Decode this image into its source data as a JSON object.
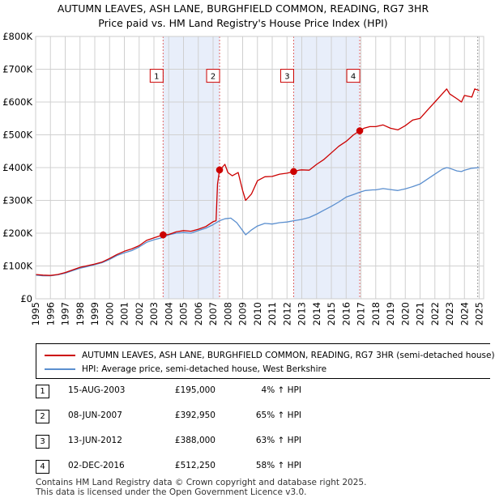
{
  "chart_data": {
    "type": "line",
    "title": "AUTUMN LEAVES, ASH LANE, BURGHFIELD COMMON, READING, RG7 3HR",
    "subtitle": "Price paid vs. HM Land Registry's House Price Index (HPI)",
    "xlim": [
      1995,
      2025.3
    ],
    "ylim": [
      0,
      800000
    ],
    "x_ticks": [
      1995,
      1996,
      1997,
      1998,
      1999,
      2000,
      2001,
      2002,
      2003,
      2004,
      2005,
      2006,
      2007,
      2008,
      2009,
      2010,
      2011,
      2012,
      2013,
      2014,
      2015,
      2016,
      2017,
      2018,
      2019,
      2020,
      2021,
      2022,
      2023,
      2024,
      2025
    ],
    "y_ticks": [
      {
        "value": 0,
        "label": "£0"
      },
      {
        "value": 100000,
        "label": "£100K"
      },
      {
        "value": 200000,
        "label": "£200K"
      },
      {
        "value": 300000,
        "label": "£300K"
      },
      {
        "value": 400000,
        "label": "£400K"
      },
      {
        "value": 500000,
        "label": "£500K"
      },
      {
        "value": 600000,
        "label": "£600K"
      },
      {
        "value": 700000,
        "label": "£700K"
      },
      {
        "value": 800000,
        "label": "£800K"
      }
    ],
    "grid": true,
    "series": [
      {
        "name": "AUTUMN LEAVES, ASH LANE, BURGHFIELD COMMON, READING, RG7 3HR (semi-detached house)",
        "color": "#cc0000",
        "points": [
          [
            1995,
            74000
          ],
          [
            1995.5,
            72000
          ],
          [
            1996,
            71000
          ],
          [
            1996.5,
            74000
          ],
          [
            1997,
            80000
          ],
          [
            1997.5,
            88000
          ],
          [
            1998,
            96000
          ],
          [
            1998.5,
            101000
          ],
          [
            1999,
            106000
          ],
          [
            1999.5,
            112000
          ],
          [
            2000,
            123000
          ],
          [
            2000.5,
            135000
          ],
          [
            2001,
            145000
          ],
          [
            2001.5,
            152000
          ],
          [
            2002,
            162000
          ],
          [
            2002.5,
            178000
          ],
          [
            2003,
            186000
          ],
          [
            2003.62,
            195000
          ],
          [
            2004,
            196000
          ],
          [
            2004.5,
            204000
          ],
          [
            2005,
            208000
          ],
          [
            2005.5,
            206000
          ],
          [
            2006,
            212000
          ],
          [
            2006.5,
            220000
          ],
          [
            2007,
            235000
          ],
          [
            2007.2,
            238000
          ],
          [
            2007.3,
            350000
          ],
          [
            2007.44,
            392950
          ],
          [
            2007.6,
            400000
          ],
          [
            2007.8,
            410000
          ],
          [
            2008,
            385000
          ],
          [
            2008.3,
            375000
          ],
          [
            2008.7,
            385000
          ],
          [
            2009,
            330000
          ],
          [
            2009.2,
            300000
          ],
          [
            2009.6,
            320000
          ],
          [
            2010,
            360000
          ],
          [
            2010.5,
            372000
          ],
          [
            2011,
            373000
          ],
          [
            2011.5,
            380000
          ],
          [
            2012,
            383000
          ],
          [
            2012.45,
            388000
          ],
          [
            2012.8,
            392000
          ],
          [
            2013,
            393000
          ],
          [
            2013.5,
            392000
          ],
          [
            2014,
            410000
          ],
          [
            2014.5,
            425000
          ],
          [
            2015,
            445000
          ],
          [
            2015.5,
            465000
          ],
          [
            2016,
            480000
          ],
          [
            2016.5,
            500000
          ],
          [
            2016.92,
            512250
          ],
          [
            2017.2,
            520000
          ],
          [
            2017.6,
            525000
          ],
          [
            2018,
            525000
          ],
          [
            2018.5,
            530000
          ],
          [
            2019,
            520000
          ],
          [
            2019.5,
            515000
          ],
          [
            2020,
            528000
          ],
          [
            2020.5,
            545000
          ],
          [
            2021,
            550000
          ],
          [
            2021.5,
            575000
          ],
          [
            2022,
            600000
          ],
          [
            2022.5,
            625000
          ],
          [
            2022.8,
            640000
          ],
          [
            2023,
            625000
          ],
          [
            2023.5,
            610000
          ],
          [
            2023.8,
            600000
          ],
          [
            2024,
            620000
          ],
          [
            2024.5,
            615000
          ],
          [
            2024.7,
            640000
          ],
          [
            2025,
            635000
          ]
        ]
      },
      {
        "name": "HPI: Average price, semi-detached house, West Berkshire",
        "color": "#5b8fcf",
        "points": [
          [
            1995,
            72000
          ],
          [
            1995.5,
            70000
          ],
          [
            1996,
            70000
          ],
          [
            1996.5,
            73000
          ],
          [
            1997,
            78000
          ],
          [
            1997.5,
            86000
          ],
          [
            1998,
            93000
          ],
          [
            1998.5,
            98000
          ],
          [
            1999,
            104000
          ],
          [
            1999.5,
            110000
          ],
          [
            2000,
            120000
          ],
          [
            2000.5,
            132000
          ],
          [
            2001,
            140000
          ],
          [
            2001.5,
            147000
          ],
          [
            2002,
            158000
          ],
          [
            2002.5,
            172000
          ],
          [
            2003,
            180000
          ],
          [
            2003.62,
            187000
          ],
          [
            2004,
            195000
          ],
          [
            2004.5,
            200000
          ],
          [
            2005,
            202000
          ],
          [
            2005.5,
            200000
          ],
          [
            2006,
            208000
          ],
          [
            2006.5,
            215000
          ],
          [
            2007,
            226000
          ],
          [
            2007.44,
            238000
          ],
          [
            2007.8,
            244000
          ],
          [
            2008.2,
            246000
          ],
          [
            2008.6,
            232000
          ],
          [
            2009,
            208000
          ],
          [
            2009.2,
            195000
          ],
          [
            2009.6,
            210000
          ],
          [
            2010,
            222000
          ],
          [
            2010.5,
            230000
          ],
          [
            2011,
            228000
          ],
          [
            2011.5,
            232000
          ],
          [
            2012,
            234000
          ],
          [
            2012.45,
            238000
          ],
          [
            2013,
            242000
          ],
          [
            2013.5,
            248000
          ],
          [
            2014,
            258000
          ],
          [
            2014.5,
            270000
          ],
          [
            2015,
            282000
          ],
          [
            2015.5,
            295000
          ],
          [
            2016,
            310000
          ],
          [
            2016.5,
            318000
          ],
          [
            2016.92,
            325000
          ],
          [
            2017.3,
            330000
          ],
          [
            2017.8,
            332000
          ],
          [
            2018,
            332000
          ],
          [
            2018.5,
            336000
          ],
          [
            2019,
            333000
          ],
          [
            2019.5,
            330000
          ],
          [
            2020,
            335000
          ],
          [
            2020.5,
            342000
          ],
          [
            2021,
            350000
          ],
          [
            2021.5,
            365000
          ],
          [
            2022,
            380000
          ],
          [
            2022.5,
            395000
          ],
          [
            2022.8,
            400000
          ],
          [
            2023,
            398000
          ],
          [
            2023.5,
            390000
          ],
          [
            2023.8,
            388000
          ],
          [
            2024,
            392000
          ],
          [
            2024.5,
            398000
          ],
          [
            2025,
            400000
          ]
        ]
      }
    ],
    "sales": [
      {
        "n": "1",
        "x": 2003.62,
        "price": 195000
      },
      {
        "n": "2",
        "x": 2007.44,
        "price": 392950
      },
      {
        "n": "3",
        "x": 2012.45,
        "price": 388000
      },
      {
        "n": "4",
        "x": 2016.92,
        "price": 512250
      }
    ],
    "shaded_periods": [
      [
        2003.62,
        2007.44
      ],
      [
        2012.45,
        2016.92
      ]
    ],
    "end_marker_x": 2024.9,
    "label_y": 680000
  },
  "legend": {
    "red_label": "AUTUMN LEAVES, ASH LANE, BURGHFIELD COMMON, READING, RG7 3HR (semi-detached house)",
    "blue_label": "HPI: Average price, semi-detached house, West Berkshire"
  },
  "transactions": [
    {
      "num": "1",
      "date": "15-AUG-2003",
      "price": "£195,000",
      "hpi": "4% ↑ HPI"
    },
    {
      "num": "2",
      "date": "08-JUN-2007",
      "price": "£392,950",
      "hpi": "65% ↑ HPI"
    },
    {
      "num": "3",
      "date": "13-JUN-2012",
      "price": "£388,000",
      "hpi": "63% ↑ HPI"
    },
    {
      "num": "4",
      "date": "02-DEC-2016",
      "price": "£512,250",
      "hpi": "58% ↑ HPI"
    }
  ],
  "footer": {
    "line1": "Contains HM Land Registry data © Crown copyright and database right 2025.",
    "line2": "This data is licensed under the Open Government Licence v3.0."
  }
}
